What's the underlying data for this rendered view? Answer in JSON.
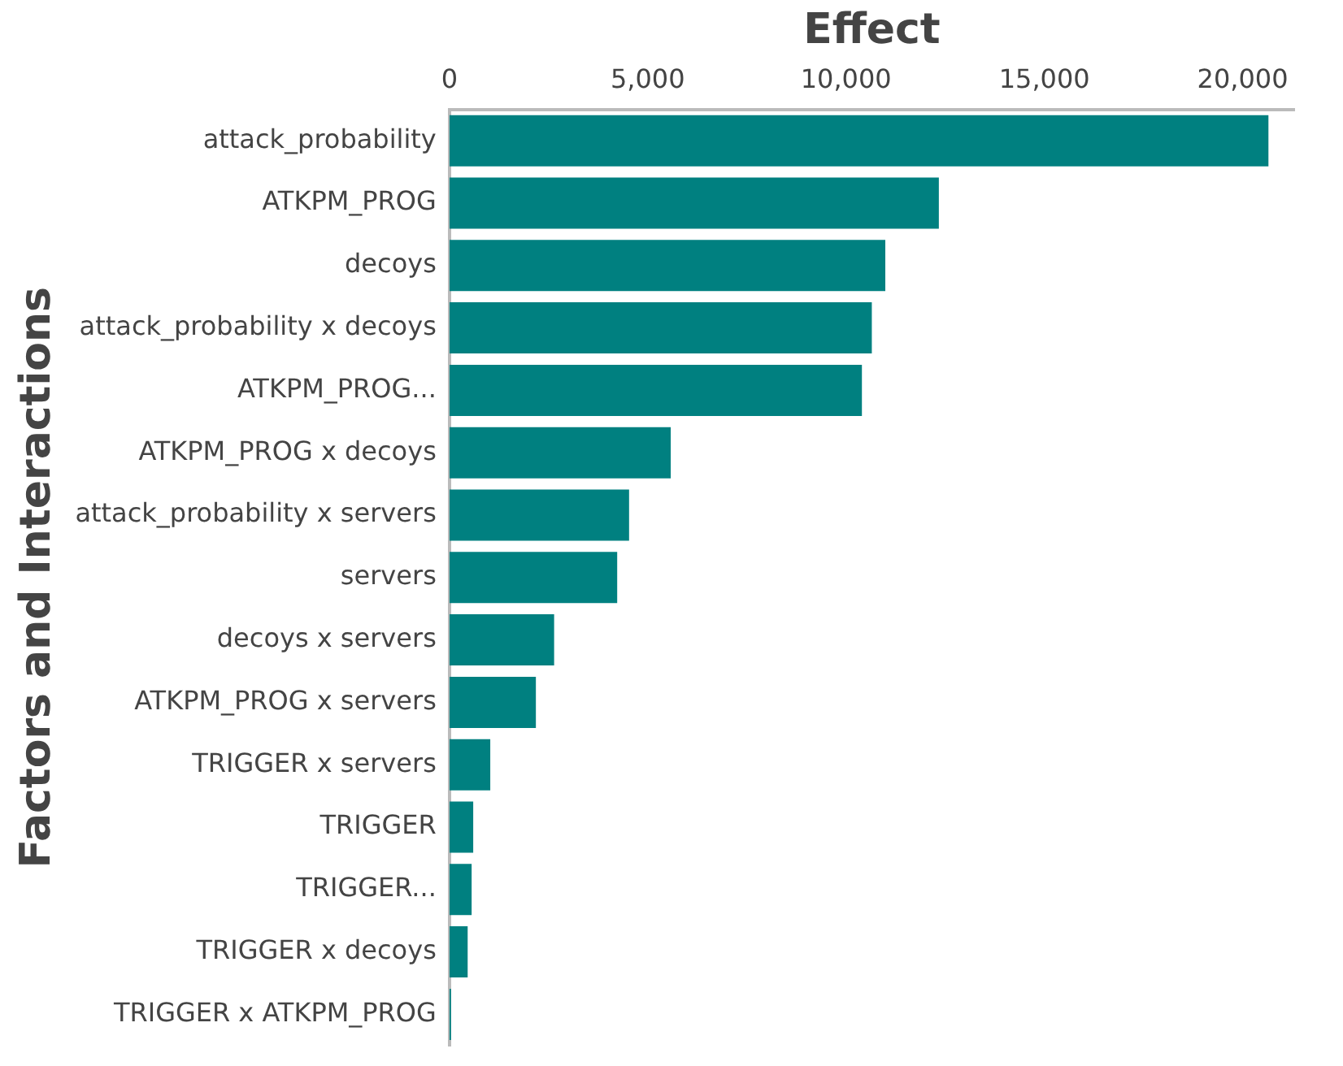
{
  "chart_data": {
    "type": "bar",
    "orientation": "horizontal",
    "xlabel": "Effect",
    "ylabel": "Factors and Interactions",
    "categories": [
      "attack_probability",
      "ATKPM_PROG",
      "decoys",
      "attack_probability x decoys",
      "ATKPM_PROG...",
      "ATKPM_PROG x decoys",
      "attack_probability x servers",
      "servers",
      "decoys x servers",
      "ATKPM_PROG x servers",
      "TRIGGER x servers",
      "TRIGGER",
      "TRIGGER...",
      "TRIGGER x decoys",
      "TRIGGER x ATKPM_PROG"
    ],
    "values": [
      20650,
      12340,
      10990,
      10650,
      10400,
      5580,
      4530,
      4230,
      2640,
      2180,
      1030,
      600,
      560,
      460,
      40
    ],
    "color": "#008080",
    "xlim": [
      0,
      21300
    ],
    "xticks": [
      0,
      {
        "value": 5000,
        "label": "5,000"
      },
      {
        "value": 10000,
        "label": "10,000"
      },
      {
        "value": 15000,
        "label": "15,000"
      },
      {
        "value": 20000,
        "label": "20,000"
      }
    ],
    "grid": false,
    "legend": false
  }
}
